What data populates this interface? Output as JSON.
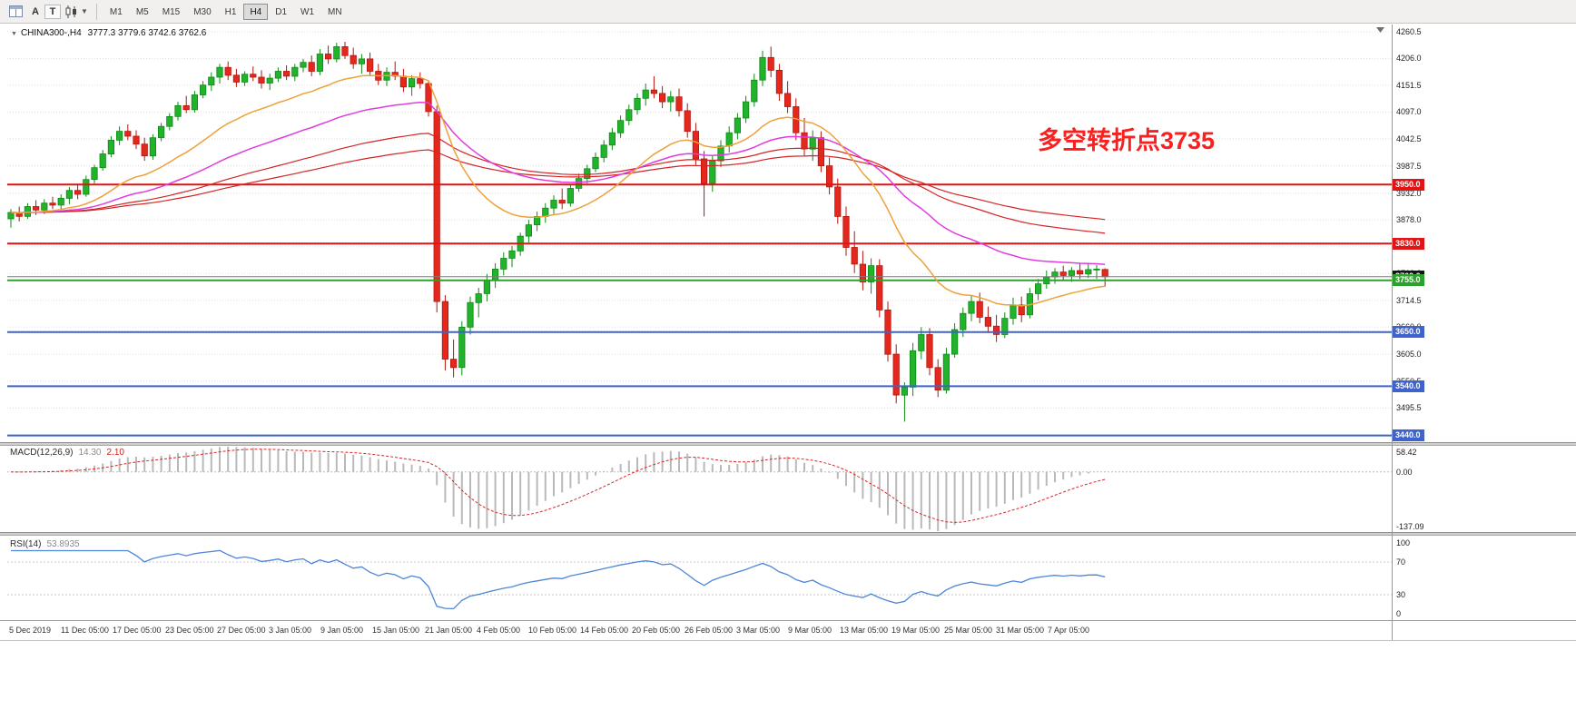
{
  "toolbar": {
    "buttons": [
      {
        "label": "A",
        "name": "auto-scroll-button"
      },
      {
        "label": "T",
        "name": "text-tool-button"
      }
    ],
    "timeframes": [
      "M1",
      "M5",
      "M15",
      "M30",
      "H1",
      "H4",
      "D1",
      "W1",
      "MN"
    ],
    "active_timeframe": "H4"
  },
  "chart_header": {
    "symbol": "CHINA300-,H4",
    "ohlc": "3777.3 3779.6 3742.6 3762.6"
  },
  "annotation": {
    "text": "多空转折点3735"
  },
  "price_axis": {
    "values": [
      4260.5,
      4206.0,
      4151.5,
      4097.0,
      4042.5,
      3987.5,
      3932.0,
      3878.0,
      3823.5,
      3769.0,
      3714.5,
      3660.0,
      3605.0,
      3550.5,
      3495.5,
      3441.0
    ]
  },
  "hlines": [
    {
      "price": 3950.0,
      "label": "3950.0",
      "color": "#e01414",
      "width": 2
    },
    {
      "price": 3830.0,
      "label": "3830.0",
      "color": "#e01414",
      "width": 2
    },
    {
      "price": 3762.6,
      "label": "3762.6",
      "color": "#7d7d7d",
      "width": 1,
      "badge": "#141414"
    },
    {
      "price": 3755.0,
      "label": "3755.0",
      "color": "#2ca12c",
      "width": 2
    },
    {
      "price": 3650.0,
      "label": "3650.0",
      "color": "#3e63cc",
      "width": 2
    },
    {
      "price": 3540.0,
      "label": "3540.0",
      "color": "#3e63cc",
      "width": 2
    },
    {
      "price": 3440.0,
      "label": "3440.0",
      "color": "#3e63cc",
      "width": 2
    }
  ],
  "time_axis": [
    "5 Dec 2019",
    "11 Dec 05:00",
    "17 Dec 05:00",
    "23 Dec 05:00",
    "27 Dec 05:00",
    "3 Jan 05:00",
    "9 Jan 05:00",
    "15 Jan 05:00",
    "21 Jan 05:00",
    "4 Feb 05:00",
    "10 Feb 05:00",
    "14 Feb 05:00",
    "20 Feb 05:00",
    "26 Feb 05:00",
    "3 Mar 05:00",
    "9 Mar 05:00",
    "13 Mar 05:00",
    "19 Mar 05:00",
    "25 Mar 05:00",
    "31 Mar 05:00",
    "7 Apr 05:00"
  ],
  "macd_panel": {
    "name": "MACD(12,26,9)",
    "value_main": "14.30",
    "value_signal": "2.10",
    "axis": [
      "58.42",
      "0.00",
      "-137.09"
    ],
    "range": [
      58.42,
      -137.09
    ]
  },
  "rsi_panel": {
    "name": "RSI(14)",
    "value": "53.8935",
    "axis": [
      "100",
      "70",
      "30",
      "0"
    ],
    "levels": [
      70,
      30
    ]
  },
  "colors": {
    "up_fill": "#21b32b",
    "up_stroke": "#0e8a16",
    "down_fill": "#e5281e",
    "down_stroke": "#b3140c",
    "ma_fast": "#eda23a",
    "ma_mid": "#e03ce0",
    "ma_slow": "#d42424",
    "grid": "#dedede",
    "macd_hist": "#b9b9b9",
    "macd_signal": "#dd2222",
    "rsi_line": "#4e86d8",
    "annotation": "#fb1f1f"
  },
  "chart_data": {
    "type": "candlestick",
    "symbol": "CHINA300-",
    "timeframe": "H4",
    "last_bar": {
      "open": 3777.3,
      "high": 3779.6,
      "low": 3742.6,
      "close": 3762.6
    },
    "price_range_visible": [
      3440.0,
      4260.5
    ],
    "x_range_visible": [
      "5 Dec 2019",
      "7 Apr 05:00"
    ],
    "candles": [
      [
        3880,
        3900,
        3862,
        3893
      ],
      [
        3893,
        3905,
        3875,
        3885
      ],
      [
        3885,
        3912,
        3880,
        3905
      ],
      [
        3905,
        3918,
        3888,
        3898
      ],
      [
        3898,
        3920,
        3890,
        3912
      ],
      [
        3912,
        3925,
        3900,
        3908
      ],
      [
        3908,
        3930,
        3898,
        3922
      ],
      [
        3922,
        3945,
        3910,
        3938
      ],
      [
        3938,
        3952,
        3920,
        3930
      ],
      [
        3930,
        3968,
        3925,
        3960
      ],
      [
        3960,
        3990,
        3952,
        3984
      ],
      [
        3984,
        4020,
        3978,
        4012
      ],
      [
        4012,
        4048,
        4005,
        4040
      ],
      [
        4040,
        4068,
        4030,
        4058
      ],
      [
        4058,
        4072,
        4040,
        4048
      ],
      [
        4048,
        4060,
        4022,
        4032
      ],
      [
        4032,
        4045,
        3998,
        4008
      ],
      [
        4008,
        4052,
        4000,
        4045
      ],
      [
        4045,
        4075,
        4038,
        4068
      ],
      [
        4068,
        4095,
        4060,
        4088
      ],
      [
        4088,
        4118,
        4080,
        4110
      ],
      [
        4110,
        4130,
        4095,
        4102
      ],
      [
        4102,
        4140,
        4096,
        4132
      ],
      [
        4132,
        4160,
        4125,
        4152
      ],
      [
        4152,
        4178,
        4140,
        4168
      ],
      [
        4168,
        4195,
        4155,
        4188
      ],
      [
        4188,
        4200,
        4162,
        4172
      ],
      [
        4172,
        4185,
        4148,
        4158
      ],
      [
        4158,
        4180,
        4150,
        4174
      ],
      [
        4174,
        4190,
        4160,
        4168
      ],
      [
        4168,
        4182,
        4145,
        4156
      ],
      [
        4156,
        4175,
        4142,
        4166
      ],
      [
        4166,
        4188,
        4158,
        4180
      ],
      [
        4180,
        4192,
        4162,
        4170
      ],
      [
        4170,
        4195,
        4160,
        4188
      ],
      [
        4188,
        4205,
        4178,
        4198
      ],
      [
        4198,
        4212,
        4170,
        4180
      ],
      [
        4180,
        4225,
        4172,
        4215
      ],
      [
        4215,
        4232,
        4195,
        4205
      ],
      [
        4205,
        4238,
        4198,
        4230
      ],
      [
        4230,
        4240,
        4205,
        4212
      ],
      [
        4212,
        4228,
        4185,
        4195
      ],
      [
        4195,
        4215,
        4175,
        4205
      ],
      [
        4205,
        4218,
        4170,
        4180
      ],
      [
        4180,
        4195,
        4152,
        4162
      ],
      [
        4162,
        4188,
        4150,
        4178
      ],
      [
        4178,
        4200,
        4162,
        4170
      ],
      [
        4170,
        4185,
        4138,
        4148
      ],
      [
        4148,
        4172,
        4130,
        4165
      ],
      [
        4165,
        4178,
        4145,
        4155
      ],
      [
        4155,
        4162,
        4088,
        4098
      ],
      [
        4098,
        4110,
        3690,
        3712
      ],
      [
        3712,
        3725,
        3572,
        3595
      ],
      [
        3595,
        3635,
        3558,
        3578
      ],
      [
        3578,
        3672,
        3562,
        3660
      ],
      [
        3660,
        3722,
        3645,
        3710
      ],
      [
        3710,
        3740,
        3680,
        3728
      ],
      [
        3728,
        3768,
        3712,
        3755
      ],
      [
        3755,
        3790,
        3740,
        3778
      ],
      [
        3778,
        3812,
        3765,
        3800
      ],
      [
        3800,
        3825,
        3782,
        3815
      ],
      [
        3815,
        3852,
        3805,
        3845
      ],
      [
        3845,
        3878,
        3832,
        3868
      ],
      [
        3868,
        3895,
        3855,
        3885
      ],
      [
        3885,
        3912,
        3872,
        3902
      ],
      [
        3902,
        3928,
        3890,
        3918
      ],
      [
        3918,
        3942,
        3900,
        3912
      ],
      [
        3912,
        3950,
        3905,
        3942
      ],
      [
        3942,
        3972,
        3935,
        3962
      ],
      [
        3962,
        3990,
        3952,
        3982
      ],
      [
        3982,
        4015,
        3975,
        4005
      ],
      [
        4005,
        4040,
        3995,
        4030
      ],
      [
        4030,
        4065,
        4020,
        4055
      ],
      [
        4055,
        4090,
        4045,
        4080
      ],
      [
        4080,
        4112,
        4070,
        4102
      ],
      [
        4102,
        4135,
        4092,
        4125
      ],
      [
        4125,
        4155,
        4110,
        4142
      ],
      [
        4142,
        4170,
        4125,
        4135
      ],
      [
        4135,
        4150,
        4105,
        4118
      ],
      [
        4118,
        4140,
        4098,
        4128
      ],
      [
        4128,
        4145,
        4088,
        4100
      ],
      [
        4100,
        4115,
        4045,
        4058
      ],
      [
        4058,
        4075,
        3990,
        4002
      ],
      [
        4002,
        4018,
        3885,
        3952
      ],
      [
        3952,
        4010,
        3935,
        3998
      ],
      [
        3998,
        4040,
        3985,
        4028
      ],
      [
        4028,
        4068,
        4015,
        4055
      ],
      [
        4055,
        4095,
        4042,
        4085
      ],
      [
        4085,
        4130,
        4075,
        4118
      ],
      [
        4118,
        4175,
        4108,
        4162
      ],
      [
        4162,
        4222,
        4150,
        4208
      ],
      [
        4208,
        4230,
        4168,
        4182
      ],
      [
        4182,
        4195,
        4120,
        4135
      ],
      [
        4135,
        4160,
        4095,
        4108
      ],
      [
        4108,
        4125,
        4040,
        4055
      ],
      [
        4055,
        4085,
        4008,
        4022
      ],
      [
        4022,
        4060,
        3998,
        4045
      ],
      [
        4045,
        4058,
        3975,
        3988
      ],
      [
        3988,
        4005,
        3930,
        3945
      ],
      [
        3945,
        3962,
        3870,
        3885
      ],
      [
        3885,
        3905,
        3805,
        3822
      ],
      [
        3822,
        3855,
        3770,
        3788
      ],
      [
        3788,
        3815,
        3735,
        3752
      ],
      [
        3752,
        3800,
        3728,
        3785
      ],
      [
        3785,
        3798,
        3680,
        3695
      ],
      [
        3695,
        3712,
        3590,
        3605
      ],
      [
        3605,
        3625,
        3505,
        3522
      ],
      [
        3522,
        3548,
        3468,
        3538
      ],
      [
        3538,
        3628,
        3520,
        3612
      ],
      [
        3612,
        3660,
        3595,
        3645
      ],
      [
        3645,
        3658,
        3562,
        3578
      ],
      [
        3578,
        3595,
        3518,
        3532
      ],
      [
        3532,
        3618,
        3525,
        3605
      ],
      [
        3605,
        3668,
        3598,
        3655
      ],
      [
        3655,
        3700,
        3640,
        3688
      ],
      [
        3688,
        3725,
        3672,
        3712
      ],
      [
        3712,
        3730,
        3668,
        3680
      ],
      [
        3680,
        3702,
        3648,
        3662
      ],
      [
        3662,
        3685,
        3630,
        3645
      ],
      [
        3645,
        3690,
        3638,
        3678
      ],
      [
        3678,
        3720,
        3665,
        3705
      ],
      [
        3705,
        3722,
        3670,
        3685
      ],
      [
        3685,
        3740,
        3678,
        3728
      ],
      [
        3728,
        3758,
        3715,
        3748
      ],
      [
        3748,
        3775,
        3738,
        3762
      ],
      [
        3762,
        3780,
        3748,
        3772
      ],
      [
        3772,
        3785,
        3755,
        3765
      ],
      [
        3765,
        3782,
        3752,
        3775
      ],
      [
        3775,
        3790,
        3758,
        3768
      ],
      [
        3768,
        3788,
        3760,
        3777
      ],
      [
        3777,
        3786,
        3758,
        3778
      ],
      [
        3777.3,
        3779.6,
        3742.6,
        3762.6
      ]
    ]
  }
}
